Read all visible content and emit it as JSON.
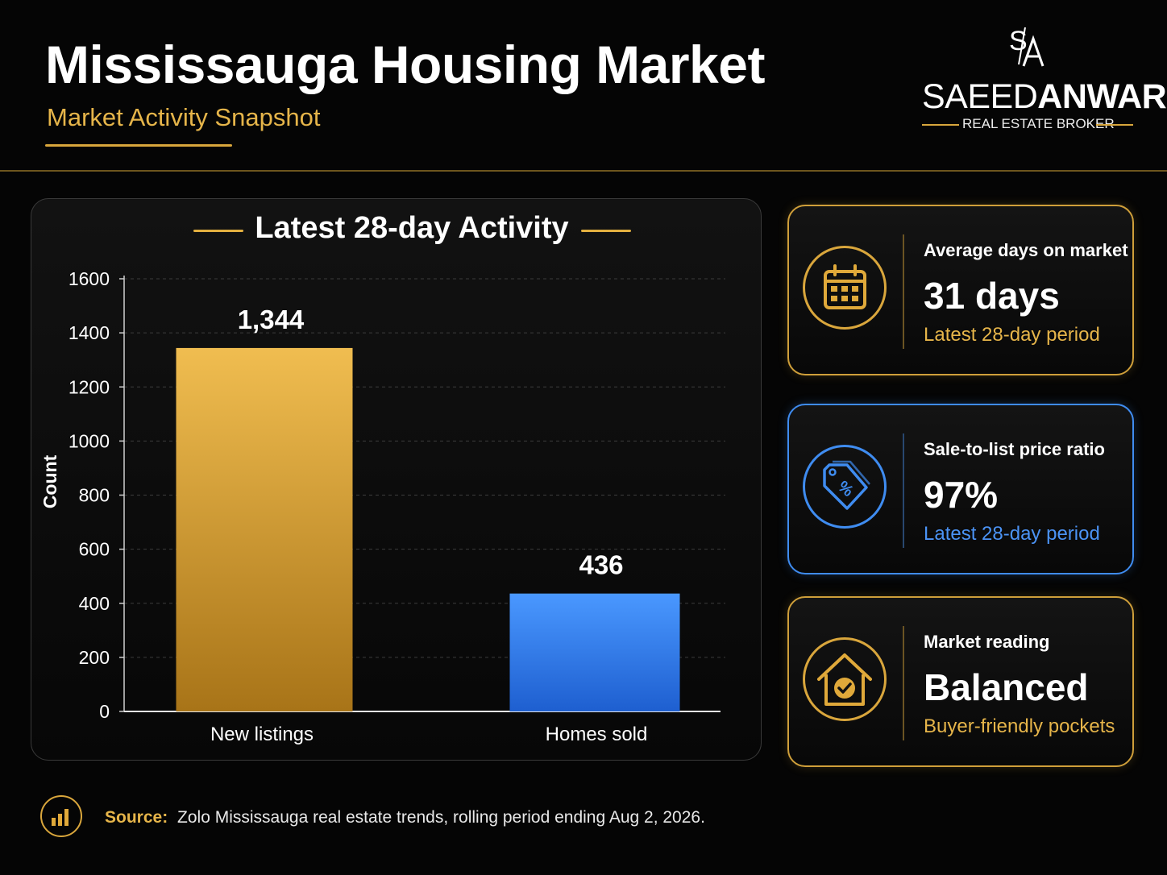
{
  "header": {
    "title": "Mississauga Housing Market",
    "subtitle": "Market Activity Snapshot"
  },
  "brand": {
    "monogram": "S/A",
    "name_light": "SAEED",
    "name_bold": "ANWAR",
    "tagline": "REAL ESTATE BROKER"
  },
  "colors": {
    "accent_gold": "#e6b54a",
    "accent_blue": "#3f8cf0",
    "background": "#050505"
  },
  "chart_data": {
    "type": "bar",
    "title": "Latest 28-day Activity",
    "categories": [
      "New listings",
      "Homes sold"
    ],
    "values": [
      1344,
      436
    ],
    "value_labels": [
      "1,344",
      "436"
    ],
    "bar_colors": [
      "#e0a93a",
      "#3a86f0"
    ],
    "xlabel": "",
    "ylabel": "Count",
    "ylim": [
      0,
      1600
    ],
    "yticks": [
      0,
      200,
      400,
      600,
      800,
      1000,
      1200,
      1400,
      1600
    ],
    "grid": true,
    "legend": "none"
  },
  "stats": [
    {
      "icon": "calendar-icon",
      "label": "Average days on market",
      "value": "31 days",
      "note": "Latest 28-day period",
      "theme": "gold"
    },
    {
      "icon": "price-tag-percent-icon",
      "label": "Sale-to-list price ratio",
      "value": "97%",
      "note": "Latest 28-day period",
      "theme": "blue"
    },
    {
      "icon": "house-check-icon",
      "label": "Market reading",
      "value": "Balanced",
      "note": "Buyer-friendly pockets",
      "theme": "gold"
    }
  ],
  "footer": {
    "icon": "bar-chart-icon",
    "source_label": "Source:",
    "source_text": "Zolo Mississauga real estate trends, rolling period ending Aug 2, 2026."
  }
}
